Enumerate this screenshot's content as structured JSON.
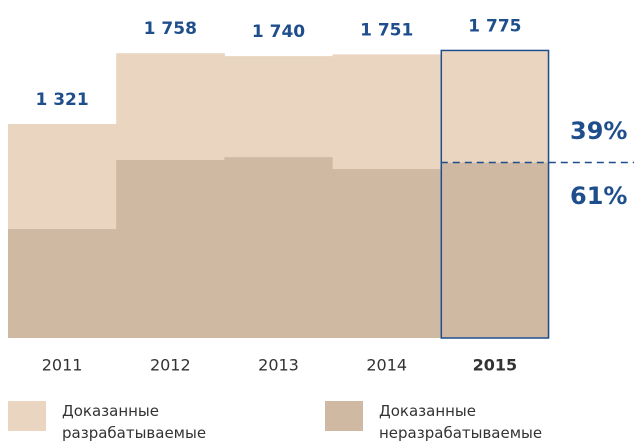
{
  "chart_data": {
    "type": "stacked_bar",
    "categories": [
      "2011",
      "2012",
      "2013",
      "2014",
      "2015"
    ],
    "series": [
      {
        "name": "Доказанные неразрабатываемые",
        "color": "#cfb9a3",
        "values": [
          673,
          1099,
          1117,
          1043,
          1083
        ]
      },
      {
        "name": "Доказанные разрабатываемые",
        "color": "#ead5c0",
        "values": [
          648,
          659,
          623,
          708,
          692
        ]
      }
    ],
    "totals": [
      1321,
      1758,
      1740,
      1751,
      1775
    ],
    "total_labels": [
      "1 321",
      "1 758",
      "1 740",
      "1 751",
      "1 775"
    ],
    "highlight": "2015",
    "highlight_color": "#1f4e8c",
    "annotations": [
      "39%",
      "61%"
    ]
  }
}
